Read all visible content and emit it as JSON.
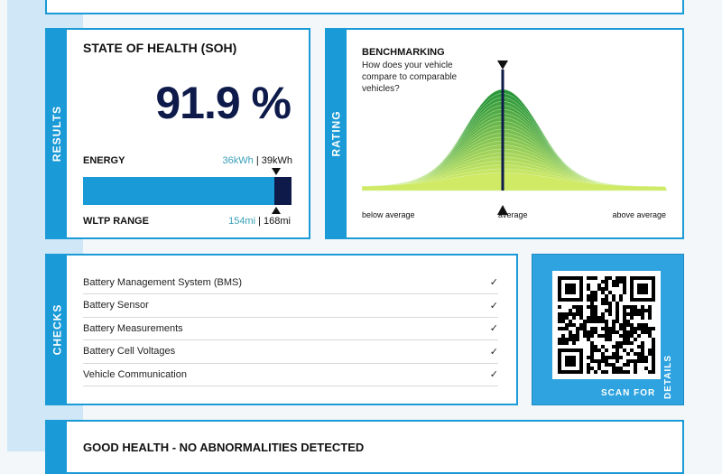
{
  "results": {
    "side_label": "RESULTS",
    "title": "STATE OF HEALTH (SOH)",
    "soh_value": "91.9 %",
    "soh_percent": 91.9,
    "energy_label": "ENERGY",
    "energy_current": "36kWh",
    "energy_original": "39kWh",
    "range_label": "WLTP RANGE",
    "range_current": "154mi",
    "range_original": "168mi",
    "separator": "|"
  },
  "rating": {
    "side_label": "RATING",
    "title": "BENCHMARKING",
    "question": "How does your vehicle compare to comparable vehicles?",
    "below": "below average",
    "average": "average",
    "above": "above average",
    "position": "average"
  },
  "checks": {
    "side_label": "CHECKS",
    "items": [
      {
        "label": "Battery Management System (BMS)",
        "status": "✓"
      },
      {
        "label": "Battery Sensor",
        "status": "✓"
      },
      {
        "label": "Battery Measurements",
        "status": "✓"
      },
      {
        "label": "Battery Cell Voltages",
        "status": "✓"
      },
      {
        "label": "Vehicle Communication",
        "status": "✓"
      }
    ]
  },
  "qr": {
    "caption_a": "SCAN FOR",
    "caption_b": "DETAILS"
  },
  "summary": {
    "title": "GOOD HEALTH - NO ABNORMALITIES DETECTED"
  },
  "colors": {
    "accent": "#1a9ad6",
    "navy": "#0d1a4a",
    "teal": "#3aa0b8"
  }
}
